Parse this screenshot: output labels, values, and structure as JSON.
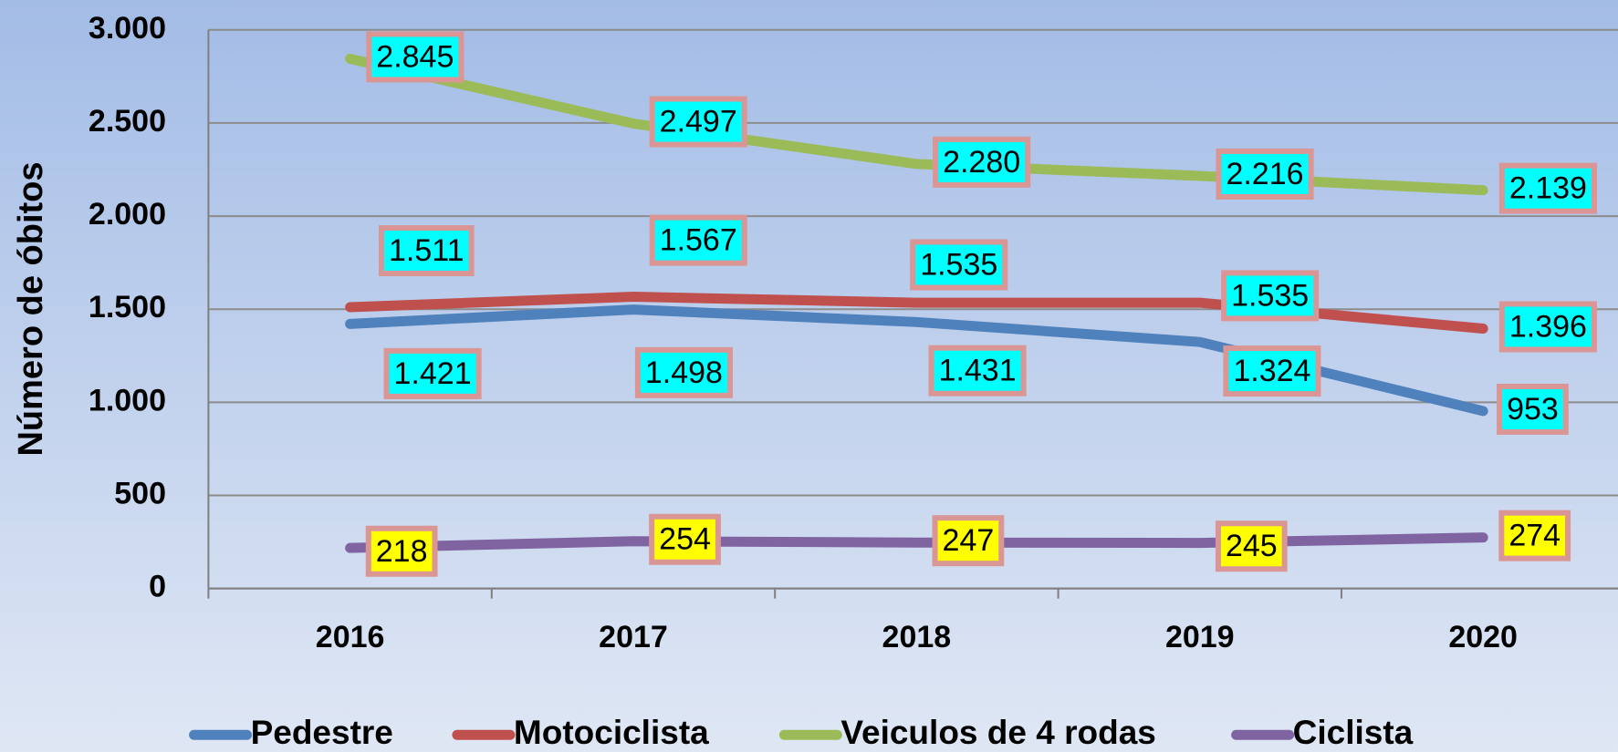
{
  "chart_data": {
    "type": "line",
    "y_label": "Número de óbitos",
    "categories": [
      "2016",
      "2017",
      "2018",
      "2019",
      "2020"
    ],
    "series": [
      {
        "name": "Pedestre",
        "color": "#4f81bd",
        "values": [
          1421,
          1498,
          1431,
          1324,
          953
        ],
        "value_labels": [
          "1.421",
          "1.498",
          "1.431",
          "1.324",
          "953"
        ],
        "label_fill": "#00ffff"
      },
      {
        "name": "Motociclista",
        "color": "#c0504d",
        "values": [
          1511,
          1567,
          1535,
          1535,
          1396
        ],
        "value_labels": [
          "1.511",
          "1.567",
          "1.535",
          "1.535",
          "1.396"
        ],
        "label_fill": "#00ffff"
      },
      {
        "name": "Veiculos de 4 rodas",
        "color": "#9bbb59",
        "values": [
          2845,
          2497,
          2280,
          2216,
          2139
        ],
        "value_labels": [
          "2.845",
          "2.497",
          "2.280",
          "2.216",
          "2.139"
        ],
        "label_fill": "#00ffff"
      },
      {
        "name": "Ciclista",
        "color": "#8064a2",
        "values": [
          218,
          254,
          247,
          245,
          274
        ],
        "value_labels": [
          "218",
          "254",
          "247",
          "245",
          "274"
        ],
        "label_fill": "#ffff00"
      }
    ],
    "ylim": [
      0,
      3000
    ],
    "yticks": [
      0,
      500,
      {
        "value": 1000,
        "label": "1.000"
      },
      {
        "value": 1500,
        "label": "1.500"
      },
      {
        "value": 2000,
        "label": "2.000"
      },
      {
        "value": 2500,
        "label": "2.500"
      },
      {
        "value": 3000,
        "label": "3.000"
      }
    ],
    "grid": true,
    "legend": "bottom"
  }
}
